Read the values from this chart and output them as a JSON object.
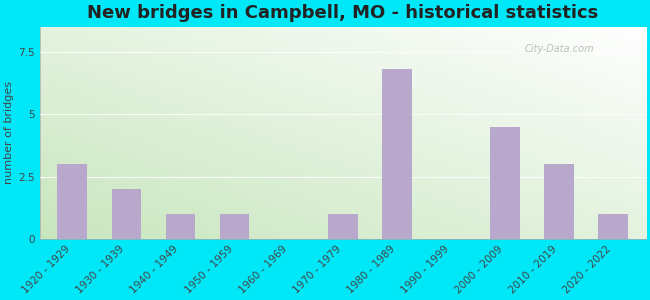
{
  "categories": [
    "1920 - 1929",
    "1930 - 1939",
    "1940 - 1949",
    "1950 - 1959",
    "1960 - 1969",
    "1970 - 1979",
    "1980 - 1989",
    "1990 - 1999",
    "2000 - 2009",
    "2010 - 2019",
    "2020 - 2022"
  ],
  "values": [
    3,
    2,
    1,
    1,
    0,
    1,
    6.8,
    0,
    4.5,
    3,
    1
  ],
  "bar_color": "#b8a8cc",
  "title": "New bridges in Campbell, MO - historical statistics",
  "ylabel": "number of bridges",
  "ylim": [
    0,
    8.5
  ],
  "yticks": [
    0,
    2.5,
    5,
    7.5
  ],
  "bg_outer": "#00e8f8",
  "bg_plot_top": "#f0f8ec",
  "bg_plot_bottom": "#c8e8c0",
  "title_fontsize": 13,
  "axis_fontsize": 8,
  "tick_fontsize": 7.5,
  "watermark_text": "City-Data.com"
}
